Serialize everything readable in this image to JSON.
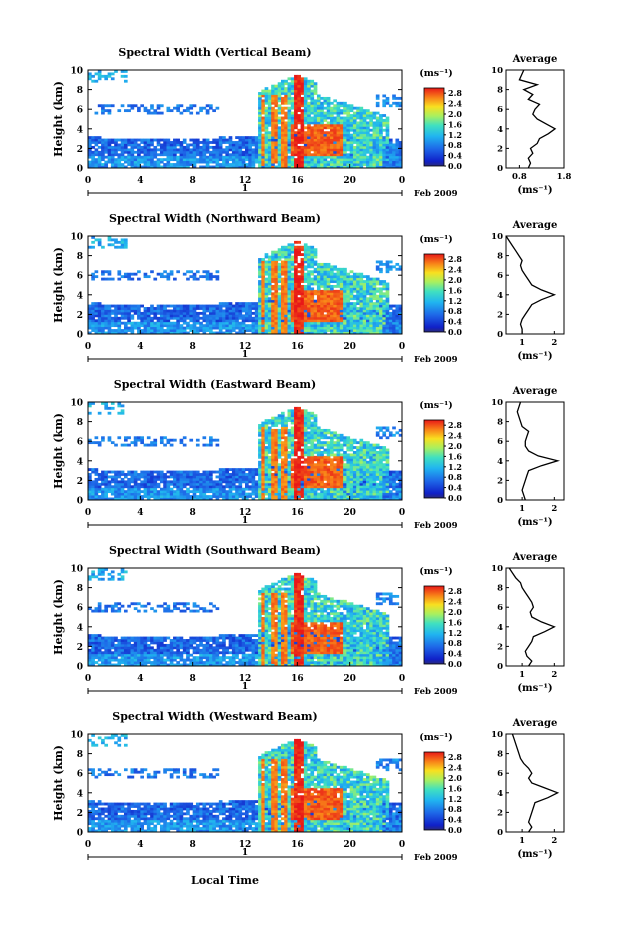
{
  "chart_data": [
    {
      "type": "heatmap",
      "title": "Spectral Width (Vertical Beam)",
      "ylabel": "Height (km)",
      "xticks": [
        "0",
        "4",
        "8",
        "12",
        "16",
        "20",
        "0"
      ],
      "yticks": [
        "0",
        "2",
        "4",
        "6",
        "8",
        "10"
      ],
      "day_marker": "1",
      "date_label": "Feb 2009",
      "xlim": [
        0,
        24
      ],
      "ylim": [
        0,
        10
      ],
      "colorbar": {
        "unit": "(ms⁻¹)",
        "ticks": [
          "2.8",
          "2.4",
          "2.0",
          "1.6",
          "1.2",
          "0.8",
          "0.4",
          "0.0"
        ],
        "range": [
          0,
          3.0
        ]
      },
      "average": {
        "title": "Average",
        "xlabel": "(ms⁻¹)",
        "xticks": [
          "0.8",
          "1.8"
        ],
        "xlim": [
          0.5,
          1.8
        ],
        "height": [
          0,
          0.5,
          1,
          1.5,
          2,
          2.5,
          3,
          3.5,
          4,
          4.5,
          5,
          5.5,
          6,
          6.5,
          7,
          7.5,
          8,
          8.5,
          9,
          9.5,
          10
        ],
        "value": [
          1.0,
          1.05,
          1.0,
          1.1,
          1.05,
          1.2,
          1.25,
          1.45,
          1.6,
          1.4,
          1.2,
          1.1,
          1.15,
          1.25,
          1.0,
          1.1,
          0.9,
          1.2,
          0.8,
          0.85,
          0.9
        ]
      }
    },
    {
      "type": "heatmap",
      "title": "Spectral Width (Northward Beam)",
      "ylabel": "Height (km)",
      "xticks": [
        "0",
        "4",
        "8",
        "12",
        "16",
        "20",
        "0"
      ],
      "yticks": [
        "0",
        "2",
        "4",
        "6",
        "8",
        "10"
      ],
      "day_marker": "1",
      "date_label": "Feb 2009",
      "xlim": [
        0,
        24
      ],
      "ylim": [
        0,
        10
      ],
      "colorbar": {
        "unit": "(ms⁻¹)",
        "ticks": [
          "2.8",
          "2.4",
          "2.0",
          "1.6",
          "1.2",
          "0.8",
          "0.4",
          "0.0"
        ],
        "range": [
          0,
          3.0
        ]
      },
      "average": {
        "title": "Average",
        "xlabel": "(ms⁻¹)",
        "xticks": [
          "1",
          "2"
        ],
        "xlim": [
          0.5,
          2.3
        ],
        "height": [
          0,
          0.5,
          1,
          1.5,
          2,
          2.5,
          3,
          3.5,
          4,
          4.5,
          5,
          5.5,
          6,
          6.5,
          7,
          7.5,
          8,
          8.5,
          9,
          9.5,
          10
        ],
        "value": [
          1.0,
          1.0,
          0.95,
          1.0,
          1.1,
          1.2,
          1.3,
          1.6,
          2.0,
          1.6,
          1.3,
          1.2,
          1.1,
          1.0,
          0.95,
          1.0,
          0.9,
          0.8,
          0.7,
          0.6,
          0.5
        ]
      }
    },
    {
      "type": "heatmap",
      "title": "Spectral Width (Eastward Beam)",
      "ylabel": "Height (km)",
      "xticks": [
        "0",
        "4",
        "8",
        "12",
        "16",
        "20",
        "0"
      ],
      "yticks": [
        "0",
        "2",
        "4",
        "6",
        "8",
        "10"
      ],
      "day_marker": "1",
      "date_label": "Feb 2009",
      "xlim": [
        0,
        24
      ],
      "ylim": [
        0,
        10
      ],
      "colorbar": {
        "unit": "(ms⁻¹)",
        "ticks": [
          "2.8",
          "2.4",
          "2.0",
          "1.6",
          "1.2",
          "0.8",
          "0.4",
          "0.0"
        ],
        "range": [
          0,
          3.0
        ]
      },
      "average": {
        "title": "Average",
        "xlabel": "(ms⁻¹)",
        "xticks": [
          "1",
          "2"
        ],
        "xlim": [
          0.5,
          2.3
        ],
        "height": [
          0,
          0.5,
          1,
          1.5,
          2,
          2.5,
          3,
          3.5,
          4,
          4.5,
          5,
          5.5,
          6,
          6.5,
          7,
          7.5,
          8,
          8.5,
          9,
          9.5,
          10
        ],
        "value": [
          1.1,
          1.05,
          1.0,
          1.05,
          1.1,
          1.15,
          1.2,
          1.6,
          2.1,
          1.5,
          1.2,
          1.1,
          1.1,
          1.15,
          1.2,
          1.0,
          0.95,
          0.9,
          0.85,
          0.9,
          0.95
        ]
      }
    },
    {
      "type": "heatmap",
      "title": "Spectral Width (Southward Beam)",
      "ylabel": "Height (km)",
      "xticks": [
        "0",
        "4",
        "8",
        "12",
        "16",
        "20",
        "0"
      ],
      "yticks": [
        "0",
        "2",
        "4",
        "6",
        "8",
        "10"
      ],
      "day_marker": "1",
      "date_label": "Feb 2009",
      "xlim": [
        0,
        24
      ],
      "ylim": [
        0,
        10
      ],
      "colorbar": {
        "unit": "(ms⁻¹)",
        "ticks": [
          "2.8",
          "2.4",
          "2.0",
          "1.6",
          "1.2",
          "0.8",
          "0.4",
          "0.0"
        ],
        "range": [
          0,
          3.0
        ]
      },
      "average": {
        "title": "Average",
        "xlabel": "(ms⁻¹)",
        "xticks": [
          "1",
          "2"
        ],
        "xlim": [
          0.5,
          2.3
        ],
        "height": [
          0,
          0.5,
          1,
          1.5,
          2,
          2.5,
          3,
          3.5,
          4,
          4.5,
          5,
          5.5,
          6,
          6.5,
          7,
          7.5,
          8,
          8.5,
          9,
          9.5,
          10
        ],
        "value": [
          1.2,
          1.3,
          1.15,
          1.1,
          1.2,
          1.3,
          1.35,
          1.7,
          2.0,
          1.6,
          1.3,
          1.25,
          1.35,
          1.3,
          1.2,
          1.1,
          1.0,
          0.95,
          0.8,
          0.7,
          0.6
        ]
      }
    },
    {
      "type": "heatmap",
      "title": "Spectral Width (Westward Beam)",
      "ylabel": "Height (km)",
      "xlabel": "Local Time",
      "xticks": [
        "0",
        "4",
        "8",
        "12",
        "16",
        "20",
        "0"
      ],
      "yticks": [
        "0",
        "2",
        "4",
        "6",
        "8",
        "10"
      ],
      "day_marker": "1",
      "date_label": "Feb 2009",
      "xlim": [
        0,
        24
      ],
      "ylim": [
        0,
        10
      ],
      "colorbar": {
        "unit": "(ms⁻¹)",
        "ticks": [
          "2.8",
          "2.4",
          "2.0",
          "1.6",
          "1.2",
          "0.8",
          "0.4",
          "0.0"
        ],
        "range": [
          0,
          3.0
        ]
      },
      "average": {
        "title": "Average",
        "xlabel": "(ms⁻¹)",
        "xticks": [
          "1",
          "2"
        ],
        "xlim": [
          0.5,
          2.3
        ],
        "height": [
          0,
          0.5,
          1,
          1.5,
          2,
          2.5,
          3,
          3.5,
          4,
          4.5,
          5,
          5.5,
          6,
          6.5,
          7,
          7.5,
          8,
          8.5,
          9,
          9.5,
          10
        ],
        "value": [
          1.2,
          1.3,
          1.2,
          1.25,
          1.3,
          1.35,
          1.4,
          1.8,
          2.1,
          1.7,
          1.3,
          1.2,
          1.3,
          1.2,
          1.05,
          0.95,
          0.9,
          0.85,
          0.8,
          0.75,
          0.7
        ]
      }
    }
  ]
}
